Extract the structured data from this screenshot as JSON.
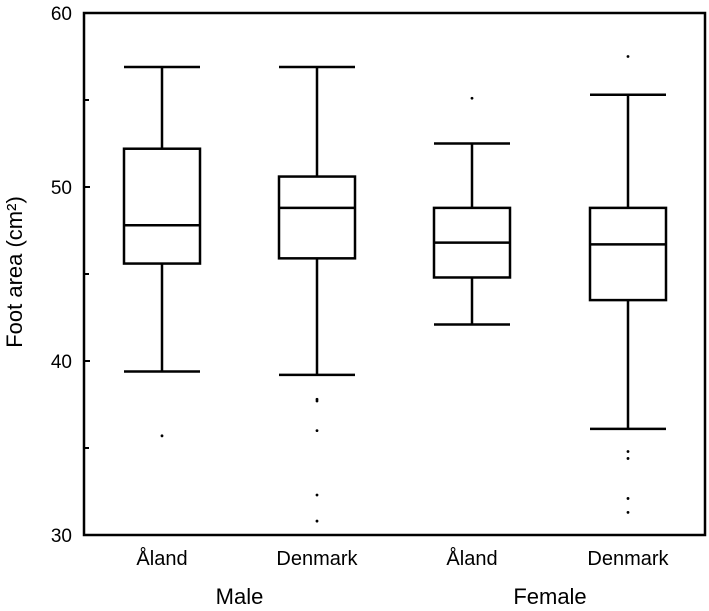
{
  "chart_data": {
    "type": "boxplot",
    "ylabel": "Foot area (cm²)",
    "ylim": [
      30,
      60
    ],
    "yticks": [
      30,
      40,
      50,
      60
    ],
    "y_minor_ticks": [
      35,
      45,
      55
    ],
    "grid": false,
    "categories": [
      "Åland",
      "Denmark",
      "Åland",
      "Denmark"
    ],
    "groups": [
      {
        "label": "Male",
        "categories": [
          0,
          1
        ]
      },
      {
        "label": "Female",
        "categories": [
          2,
          3
        ]
      }
    ],
    "boxes": [
      {
        "category": "Åland",
        "group": "Male",
        "whisker_low": 39.4,
        "q1": 45.6,
        "median": 47.8,
        "q3": 52.2,
        "whisker_high": 56.9,
        "outliers": [
          35.7
        ]
      },
      {
        "category": "Denmark",
        "group": "Male",
        "whisker_low": 39.2,
        "q1": 45.9,
        "median": 48.8,
        "q3": 50.6,
        "whisker_high": 56.9,
        "outliers": [
          37.8,
          37.7,
          36.0,
          32.3,
          30.8
        ]
      },
      {
        "category": "Åland",
        "group": "Female",
        "whisker_low": 42.1,
        "q1": 44.8,
        "median": 46.8,
        "q3": 48.8,
        "whisker_high": 52.5,
        "outliers": [
          55.1
        ]
      },
      {
        "category": "Denmark",
        "group": "Female",
        "whisker_low": 36.1,
        "q1": 43.5,
        "median": 46.7,
        "q3": 48.8,
        "whisker_high": 55.3,
        "outliers": [
          57.5,
          34.8,
          34.4,
          32.1,
          31.3
        ]
      }
    ]
  }
}
